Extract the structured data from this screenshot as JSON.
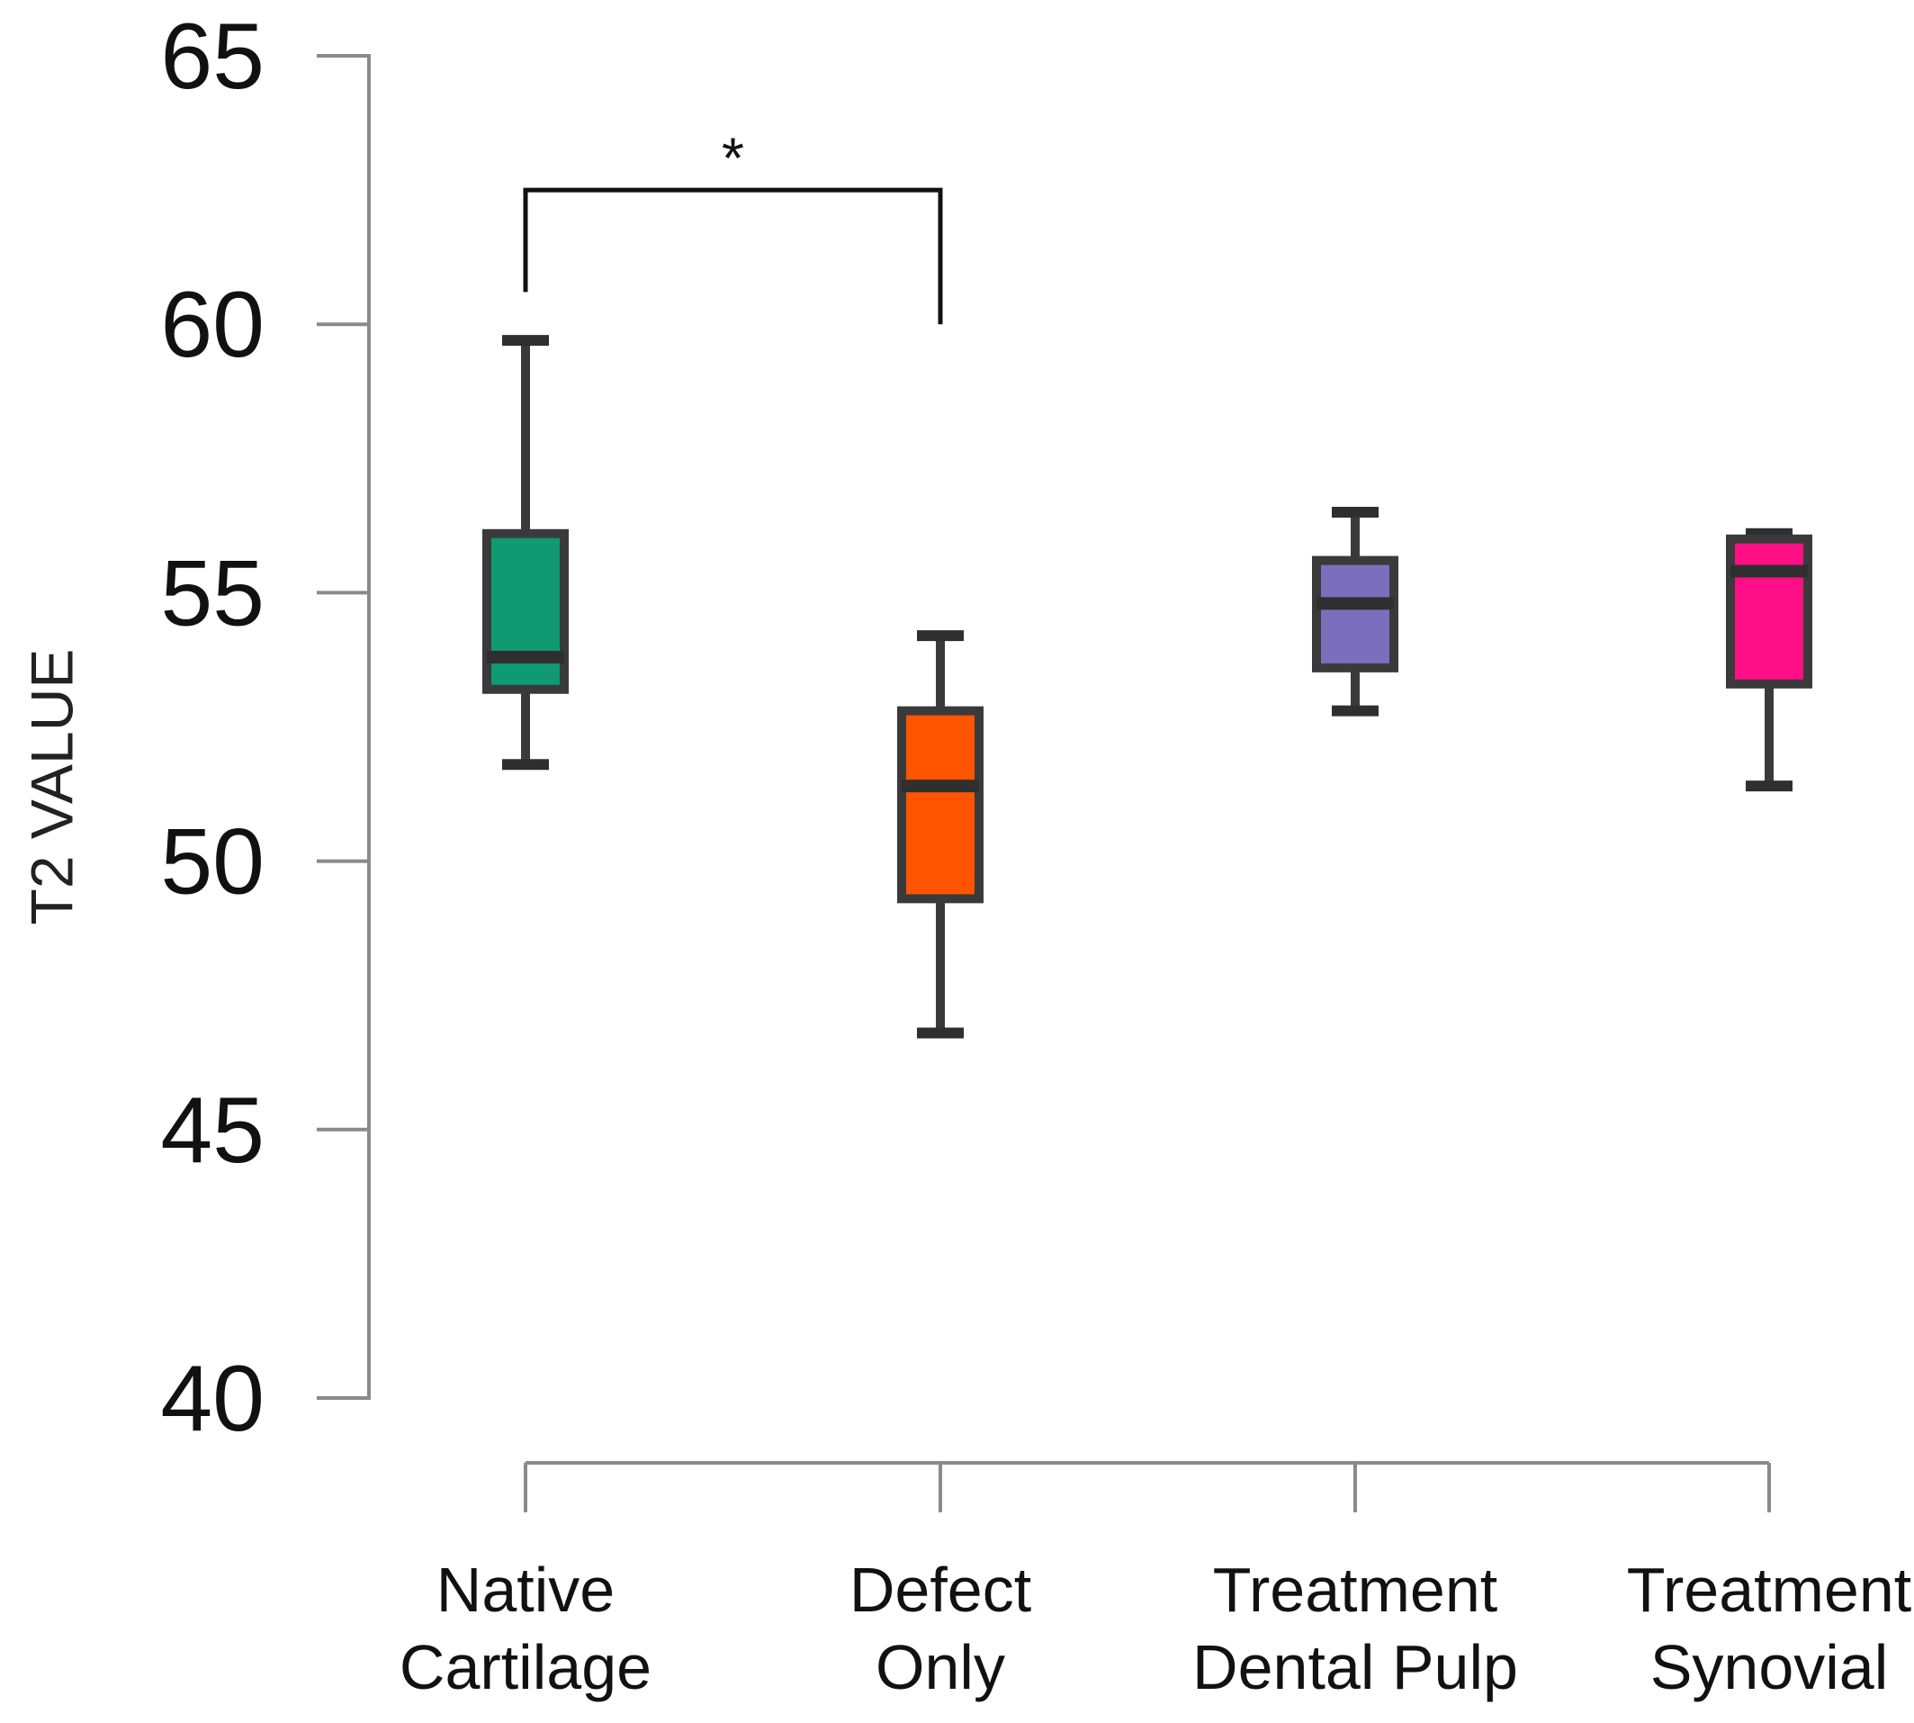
{
  "chart_data": {
    "type": "boxplot",
    "title": "",
    "xlabel": "",
    "ylabel": "T2 VALUE",
    "ylim": [
      40,
      65
    ],
    "yticks": [
      40,
      45,
      50,
      55,
      60,
      65
    ],
    "grid": false,
    "categories": [
      [
        "Native",
        "Cartilage"
      ],
      [
        "Defect",
        "Only"
      ],
      [
        "Treatment",
        "Dental Pulp"
      ],
      [
        "Treatment",
        "Synovial"
      ]
    ],
    "boxes": [
      {
        "name": "Native Cartilage",
        "min": 51.8,
        "q1": 53.2,
        "median": 53.8,
        "q3": 56.1,
        "max": 59.7,
        "color": "#0f9a72"
      },
      {
        "name": "Defect Only",
        "min": 46.8,
        "q1": 49.3,
        "median": 51.4,
        "q3": 52.8,
        "max": 54.2,
        "color": "#ff5400"
      },
      {
        "name": "Treatment Dental Pulp",
        "min": 52.8,
        "q1": 53.6,
        "median": 54.8,
        "q3": 55.6,
        "max": 56.5,
        "color": "#7b6fbd"
      },
      {
        "name": "Treatment Synovial",
        "min": 51.4,
        "q1": 53.3,
        "median": 55.4,
        "q3": 56.0,
        "max": 56.1,
        "color": "#ff0f86"
      }
    ],
    "annotations": [
      {
        "label": "*",
        "from": 0,
        "to": 1,
        "left_y": 60.6,
        "right_y": 60.0,
        "top_y": 62.5,
        "star_y": 63.4
      }
    ]
  }
}
